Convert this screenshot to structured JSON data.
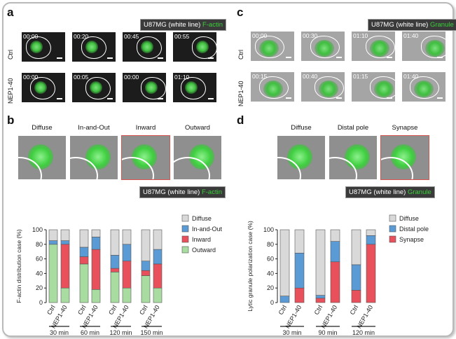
{
  "panels": {
    "a": {
      "label": "a",
      "legend_prefix": "U87MG (white line) ",
      "legend_suffix": "F-actin",
      "rows": [
        {
          "name": "Ctrl",
          "times": [
            "00:00",
            "00:20",
            "00:45",
            "00:55"
          ]
        },
        {
          "name": "NEP1-40",
          "times": [
            "00:00",
            "00:05",
            "00:00",
            "01:10"
          ]
        }
      ]
    },
    "b": {
      "label": "b",
      "patterns": [
        "Diffuse",
        "In-and-Out",
        "Inward",
        "Outward"
      ],
      "legend_prefix": "U87MG (white line) ",
      "legend_suffix": "F-actin"
    },
    "c": {
      "label": "c",
      "legend_prefix": "U87MG (white line) ",
      "legend_suffix": "Granule",
      "rows": [
        {
          "name": "Ctrl",
          "times": [
            "00:00",
            "00:30",
            "01:10",
            "01:40"
          ]
        },
        {
          "name": "NEP1-40",
          "times": [
            "00:15",
            "00:40",
            "01:15",
            "01:40"
          ]
        }
      ]
    },
    "d": {
      "label": "d",
      "patterns": [
        "Diffuse",
        "Distal pole",
        "Synapse"
      ],
      "legend_prefix": "U87MG (white line) ",
      "legend_suffix": "Granule"
    }
  },
  "colors": {
    "gray": "#d9d9d9",
    "blue": "#5b9bd5",
    "red": "#e8505b",
    "green": "#a9dca0",
    "green_text": "#39d139"
  },
  "chart_data": [
    {
      "type": "bar",
      "stacked": true,
      "ylabel": "F-actin distribution case (%)",
      "ylim": [
        0,
        100
      ],
      "yticks": [
        0,
        20,
        40,
        60,
        80,
        100
      ],
      "categories": [
        "Ctrl",
        "NEP1-40",
        "Ctrl",
        "NEP1-40",
        "Ctrl",
        "NEP1-40",
        "Ctrl",
        "NEP1-40"
      ],
      "groups": [
        "30 min",
        "60 min",
        "120 min",
        "150 min"
      ],
      "series": [
        {
          "name": "Outward",
          "values": [
            80,
            20,
            53,
            18,
            42,
            20,
            37,
            20
          ]
        },
        {
          "name": "Inward",
          "values": [
            0,
            60,
            10,
            55,
            5,
            37,
            7,
            33
          ]
        },
        {
          "name": "In-and-Out",
          "values": [
            5,
            5,
            13,
            17,
            18,
            23,
            13,
            20
          ]
        },
        {
          "name": "Diffuse",
          "values": [
            15,
            15,
            24,
            10,
            35,
            20,
            43,
            27
          ]
        }
      ],
      "legend": [
        "Diffuse",
        "In-and-Out",
        "Inward",
        "Outward"
      ]
    },
    {
      "type": "bar",
      "stacked": true,
      "ylabel": "Lytic granule polarization case (%)",
      "ylim": [
        0,
        100
      ],
      "yticks": [
        0,
        20,
        40,
        60,
        80,
        100
      ],
      "categories": [
        "Ctrl",
        "NEP1-40",
        "Ctrl",
        "NEP1-40",
        "Ctrl",
        "NEP1-40"
      ],
      "groups": [
        "30 min",
        "90 min",
        "120 min"
      ],
      "series": [
        {
          "name": "Synapse",
          "values": [
            0,
            20,
            6,
            56,
            17,
            80
          ]
        },
        {
          "name": "Distal pole",
          "values": [
            9,
            48,
            4,
            28,
            35,
            12
          ]
        },
        {
          "name": "Diffuse",
          "values": [
            91,
            32,
            90,
            16,
            48,
            8
          ]
        }
      ],
      "legend": [
        "Diffuse",
        "Distal pole",
        "Synapse"
      ]
    }
  ]
}
